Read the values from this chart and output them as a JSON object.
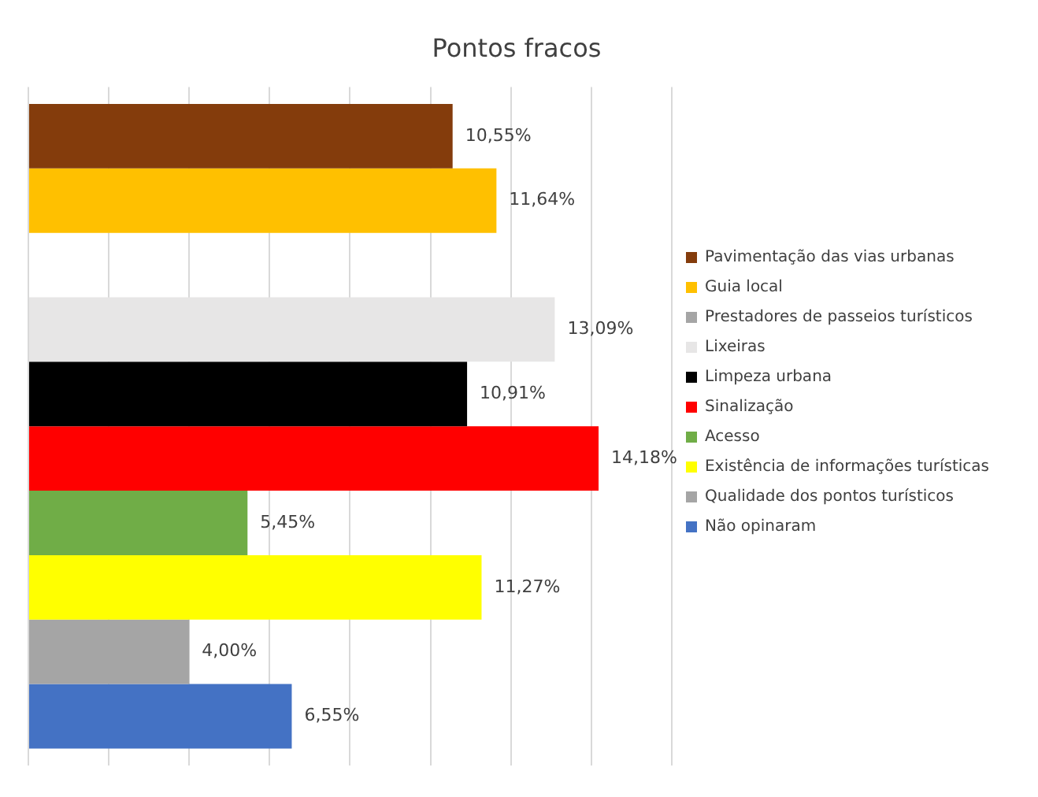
{
  "chart_data": {
    "type": "bar",
    "orientation": "horizontal",
    "title": "Pontos fracos",
    "categories": [
      null
    ],
    "series": [
      {
        "name": "Pavimentação das vias urbanas",
        "color": "#843c0c",
        "values": [
          10.55
        ],
        "value_labels": [
          "10,55%"
        ]
      },
      {
        "name": "Guia local",
        "color": "#ffc000",
        "values": [
          11.64
        ],
        "value_labels": [
          "11,64%"
        ]
      },
      {
        "name": "Prestadores de passeios turísticos",
        "color": "#a5a5a5",
        "values": [
          null
        ],
        "value_labels": [
          null
        ]
      },
      {
        "name": "Lixeiras",
        "color": "#e7e6e6",
        "values": [
          13.09
        ],
        "value_labels": [
          "13,09%"
        ]
      },
      {
        "name": "Limpeza urbana",
        "color": "#000000",
        "values": [
          10.91
        ],
        "value_labels": [
          "10,91%"
        ]
      },
      {
        "name": "Sinalização",
        "color": "#ff0000",
        "values": [
          14.18
        ],
        "value_labels": [
          "14,18%"
        ]
      },
      {
        "name": "Acesso",
        "color": "#70ad47",
        "values": [
          5.45
        ],
        "value_labels": [
          "5,45%"
        ]
      },
      {
        "name": "Existência de informações turísticas",
        "color": "#ffff00",
        "values": [
          11.27
        ],
        "value_labels": [
          "11,27%"
        ]
      },
      {
        "name": "Qualidade dos pontos turísticos",
        "color": "#a5a5a5",
        "values": [
          4.0
        ],
        "value_labels": [
          "4,00%"
        ]
      },
      {
        "name": "Não opinaram",
        "color": "#4472c4",
        "values": [
          6.55
        ],
        "value_labels": [
          "6,55%"
        ]
      }
    ],
    "xlim": [
      0,
      16
    ],
    "xticks": [
      0,
      2,
      4,
      6,
      8,
      10,
      12,
      14,
      16
    ],
    "grid": "x",
    "legend": "right",
    "tick_labels": false
  }
}
